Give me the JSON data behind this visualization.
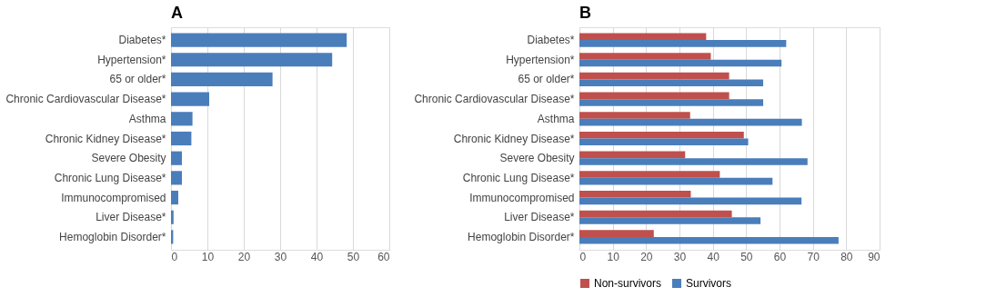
{
  "chart_data": [
    {
      "type": "bar",
      "orientation": "horizontal",
      "title": "A",
      "categories": [
        "Diabetes*",
        "Hypertension*",
        "65 or older*",
        "Chronic Cardiovascular Disease*",
        "Asthma",
        "Chronic Kidney Disease*",
        "Severe Obesity",
        "Chronic Lung Disease*",
        "Immunocompromised",
        "Liver Disease*",
        "Hemoglobin Disorder*"
      ],
      "series": [
        {
          "color": "#4a7ebb",
          "values": [
            48.3,
            44.3,
            27.9,
            10.5,
            5.9,
            5.6,
            3.0,
            3.0,
            2.0,
            0.7,
            0.6
          ]
        }
      ],
      "xlim": [
        0,
        60
      ],
      "xticks": [
        0,
        10,
        20,
        30,
        40,
        50,
        60
      ],
      "grid": "x"
    },
    {
      "type": "bar",
      "orientation": "horizontal",
      "title": "B",
      "categories": [
        "Diabetes*",
        "Hypertension*",
        "65 or older*",
        "Chronic Cardiovascular Disease*",
        "Asthma",
        "Chronic Kidney Disease*",
        "Severe Obesity",
        "Chronic Lung Disease*",
        "Immunocompromised",
        "Liver Disease*",
        "Hemoglobin Disorder*"
      ],
      "series": [
        {
          "name": "Non-survivors",
          "color": "#c0504d",
          "values": [
            38.0,
            39.4,
            44.9,
            44.9,
            33.2,
            49.3,
            31.7,
            42.1,
            33.4,
            45.7,
            22.3
          ]
        },
        {
          "name": "Survivors",
          "color": "#4a7ebb",
          "values": [
            62.0,
            60.6,
            55.1,
            55.1,
            66.7,
            50.6,
            68.4,
            57.9,
            66.6,
            54.3,
            77.7
          ]
        }
      ],
      "xlim": [
        0,
        90
      ],
      "xticks": [
        0,
        10,
        20,
        30,
        40,
        50,
        60,
        70,
        80,
        90
      ],
      "grid": "x",
      "legend": "bottom"
    }
  ]
}
